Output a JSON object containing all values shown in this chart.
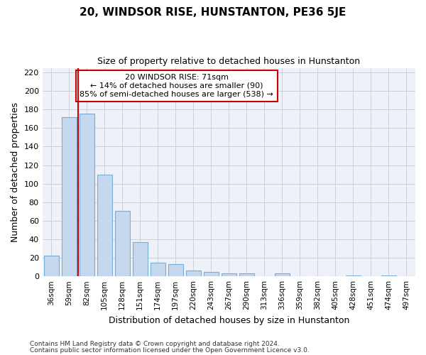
{
  "title": "20, WINDSOR RISE, HUNSTANTON, PE36 5JE",
  "subtitle": "Size of property relative to detached houses in Hunstanton",
  "xlabel": "Distribution of detached houses by size in Hunstanton",
  "ylabel": "Number of detached properties",
  "categories": [
    "36sqm",
    "59sqm",
    "82sqm",
    "105sqm",
    "128sqm",
    "151sqm",
    "174sqm",
    "197sqm",
    "220sqm",
    "243sqm",
    "267sqm",
    "290sqm",
    "313sqm",
    "336sqm",
    "359sqm",
    "382sqm",
    "405sqm",
    "428sqm",
    "451sqm",
    "474sqm",
    "497sqm"
  ],
  "values": [
    22,
    172,
    176,
    110,
    71,
    37,
    15,
    13,
    6,
    5,
    3,
    3,
    0,
    3,
    0,
    0,
    0,
    1,
    0,
    1,
    0
  ],
  "bar_color": "#c5d8ee",
  "bar_edge_color": "#7aadd4",
  "grid_color": "#c8d0dc",
  "vline_x_index": 1.5,
  "vline_color": "#cc0000",
  "annotation_text": "20 WINDSOR RISE: 71sqm\n← 14% of detached houses are smaller (90)\n85% of semi-detached houses are larger (538) →",
  "annotation_box_color": "#ffffff",
  "annotation_border_color": "#cc0000",
  "ylim": [
    0,
    225
  ],
  "yticks": [
    0,
    20,
    40,
    60,
    80,
    100,
    120,
    140,
    160,
    180,
    200,
    220
  ],
  "footnote1": "Contains HM Land Registry data © Crown copyright and database right 2024.",
  "footnote2": "Contains public sector information licensed under the Open Government Licence v3.0.",
  "background_color": "#ffffff",
  "plot_bg_color": "#eef2f8"
}
